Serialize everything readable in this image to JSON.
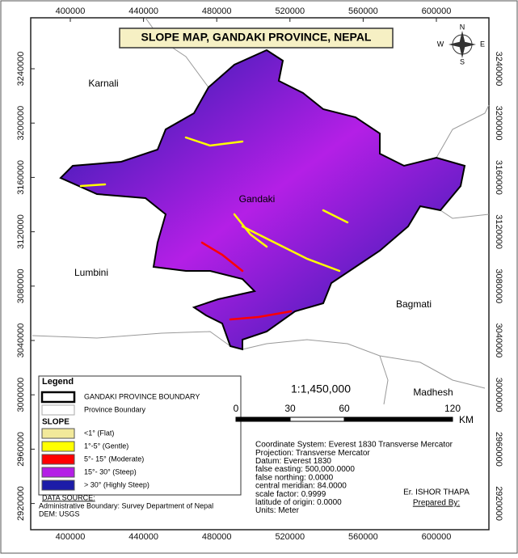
{
  "title": "SLOPE MAP, GANDAKI PROVINCE, NEPAL",
  "grid": {
    "eastings": [
      400000,
      440000,
      480000,
      520000,
      560000,
      600000
    ],
    "northings": [
      3240000,
      3200000,
      3160000,
      3120000,
      3080000,
      3040000,
      3000000,
      2960000,
      2920000
    ]
  },
  "regions": [
    "Karnali",
    "Gandaki",
    "Lumbini",
    "Bagmati",
    "Madhesh"
  ],
  "compass": [
    "N",
    "E",
    "S",
    "W"
  ],
  "legend": {
    "title": "Legend",
    "boundaries": [
      "GANDAKI PROVINCE BOUNDARY",
      "Province Boundary"
    ],
    "slope_title": "SLOPE",
    "classes": [
      {
        "label": "<1° (Flat)",
        "color": "#f2e99a"
      },
      {
        "label": "1°-5° (Gentle)",
        "color": "#ffff00"
      },
      {
        "label": "5°- 15° (Moderate)",
        "color": "#ff0000"
      },
      {
        "label": "15°- 30° (Steep)",
        "color": "#b41fe6"
      },
      {
        "label": "> 30° (Highly Steep)",
        "color": "#1c1ca8"
      }
    ]
  },
  "data_source": {
    "heading": "DATA SOURCE:",
    "lines": [
      "Administrative Boundary: Survey Department of Nepal",
      "DEM: USGS"
    ]
  },
  "scale": {
    "ratio": "1:1,450,000",
    "ticks": [
      0,
      30,
      60,
      120
    ],
    "unit": "KM"
  },
  "projection": [
    "Coordinate System: Everest 1830 Transverse Mercator",
    "Projection: Transverse Mercator",
    "Datum: Everest 1830",
    "false easting: 500,000.0000",
    "false northing: 0.0000",
    "central meridian: 84.0000",
    "scale factor: 0.9999",
    "latitude of origin: 0.0000",
    "Units: Meter"
  ],
  "author": "Er. ISHOR THAPA",
  "prepared_by": "Prepared By:"
}
